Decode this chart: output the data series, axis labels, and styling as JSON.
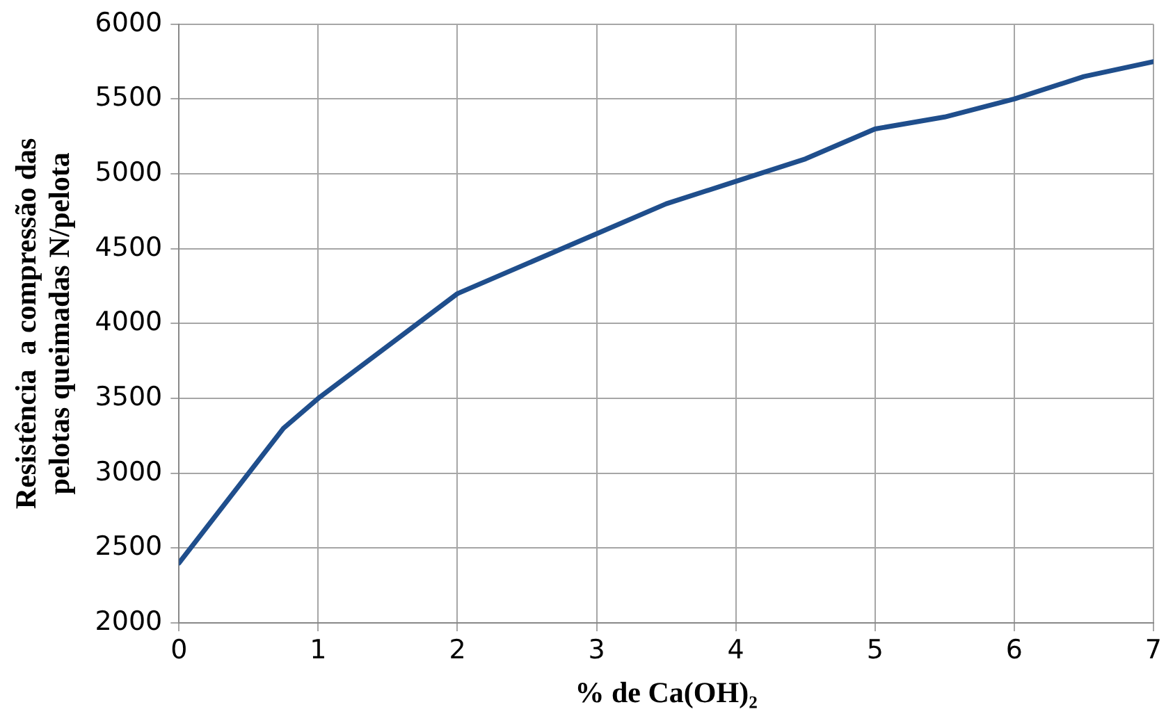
{
  "chart_data": {
    "type": "line",
    "xlabel": "% de Ca(OH)₂",
    "ylabel": "Resistência  a compressão das\npelotas queimadas N/pelota",
    "x": [
      0,
      0.75,
      1,
      2,
      3,
      3.5,
      4,
      4.5,
      5,
      5.5,
      6,
      6.5,
      7
    ],
    "series": [
      {
        "color": "#1f4e8c",
        "values": [
          2400,
          3300,
          3500,
          4200,
          4600,
          4800,
          4950,
          5100,
          5300,
          5380,
          5500,
          5650,
          5750
        ]
      }
    ],
    "xlim": [
      0,
      7
    ],
    "xticks": [
      0,
      1,
      2,
      3,
      4,
      5,
      6,
      7
    ],
    "ylim": [
      2000,
      6000
    ],
    "yticks": [
      2000,
      2500,
      3000,
      3500,
      4000,
      4500,
      5000,
      5500,
      6000
    ],
    "grid": true,
    "legend": false,
    "marker": "none",
    "line_style": "solid"
  }
}
